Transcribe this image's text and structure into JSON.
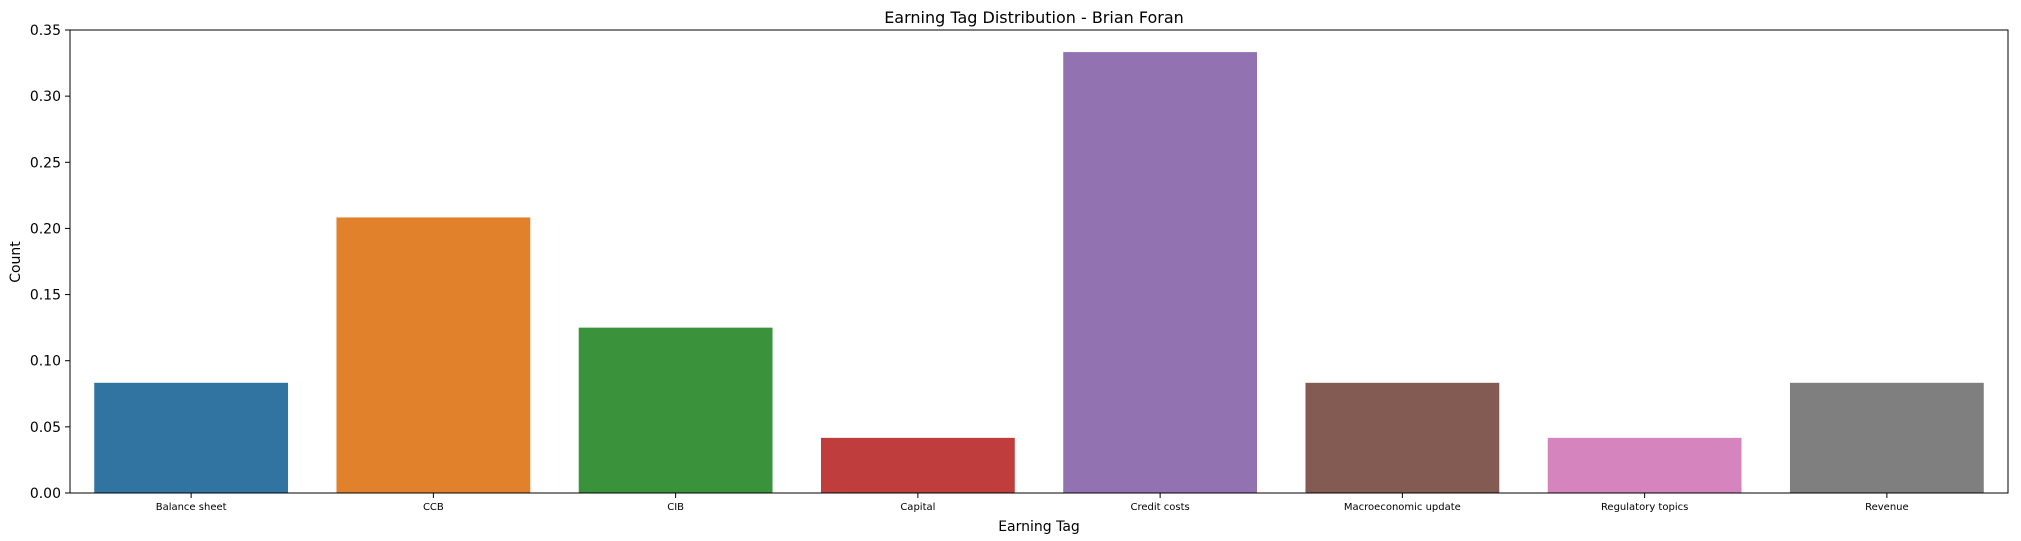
{
  "chart_data": {
    "type": "bar",
    "title": "Earning Tag Distribution - Brian Foran",
    "xlabel": "Earning Tag",
    "ylabel": "Count",
    "categories": [
      "Balance sheet",
      "CCB",
      "CIB",
      "Capital",
      "Credit costs",
      "Macroeconomic update",
      "Regulatory topics",
      "Revenue"
    ],
    "values": [
      0.0833,
      0.2083,
      0.125,
      0.0417,
      0.3333,
      0.0833,
      0.0417,
      0.0833
    ],
    "colors": [
      "#3274a1",
      "#e1812c",
      "#3a923a",
      "#c03d3e",
      "#9372b2",
      "#845b53",
      "#d684bd",
      "#7f7f7f"
    ],
    "ylim": [
      0,
      0.35
    ],
    "yticks": [
      "0.00",
      "0.05",
      "0.10",
      "0.15",
      "0.20",
      "0.25",
      "0.30",
      "0.35"
    ],
    "grid": false,
    "legend": "none"
  }
}
